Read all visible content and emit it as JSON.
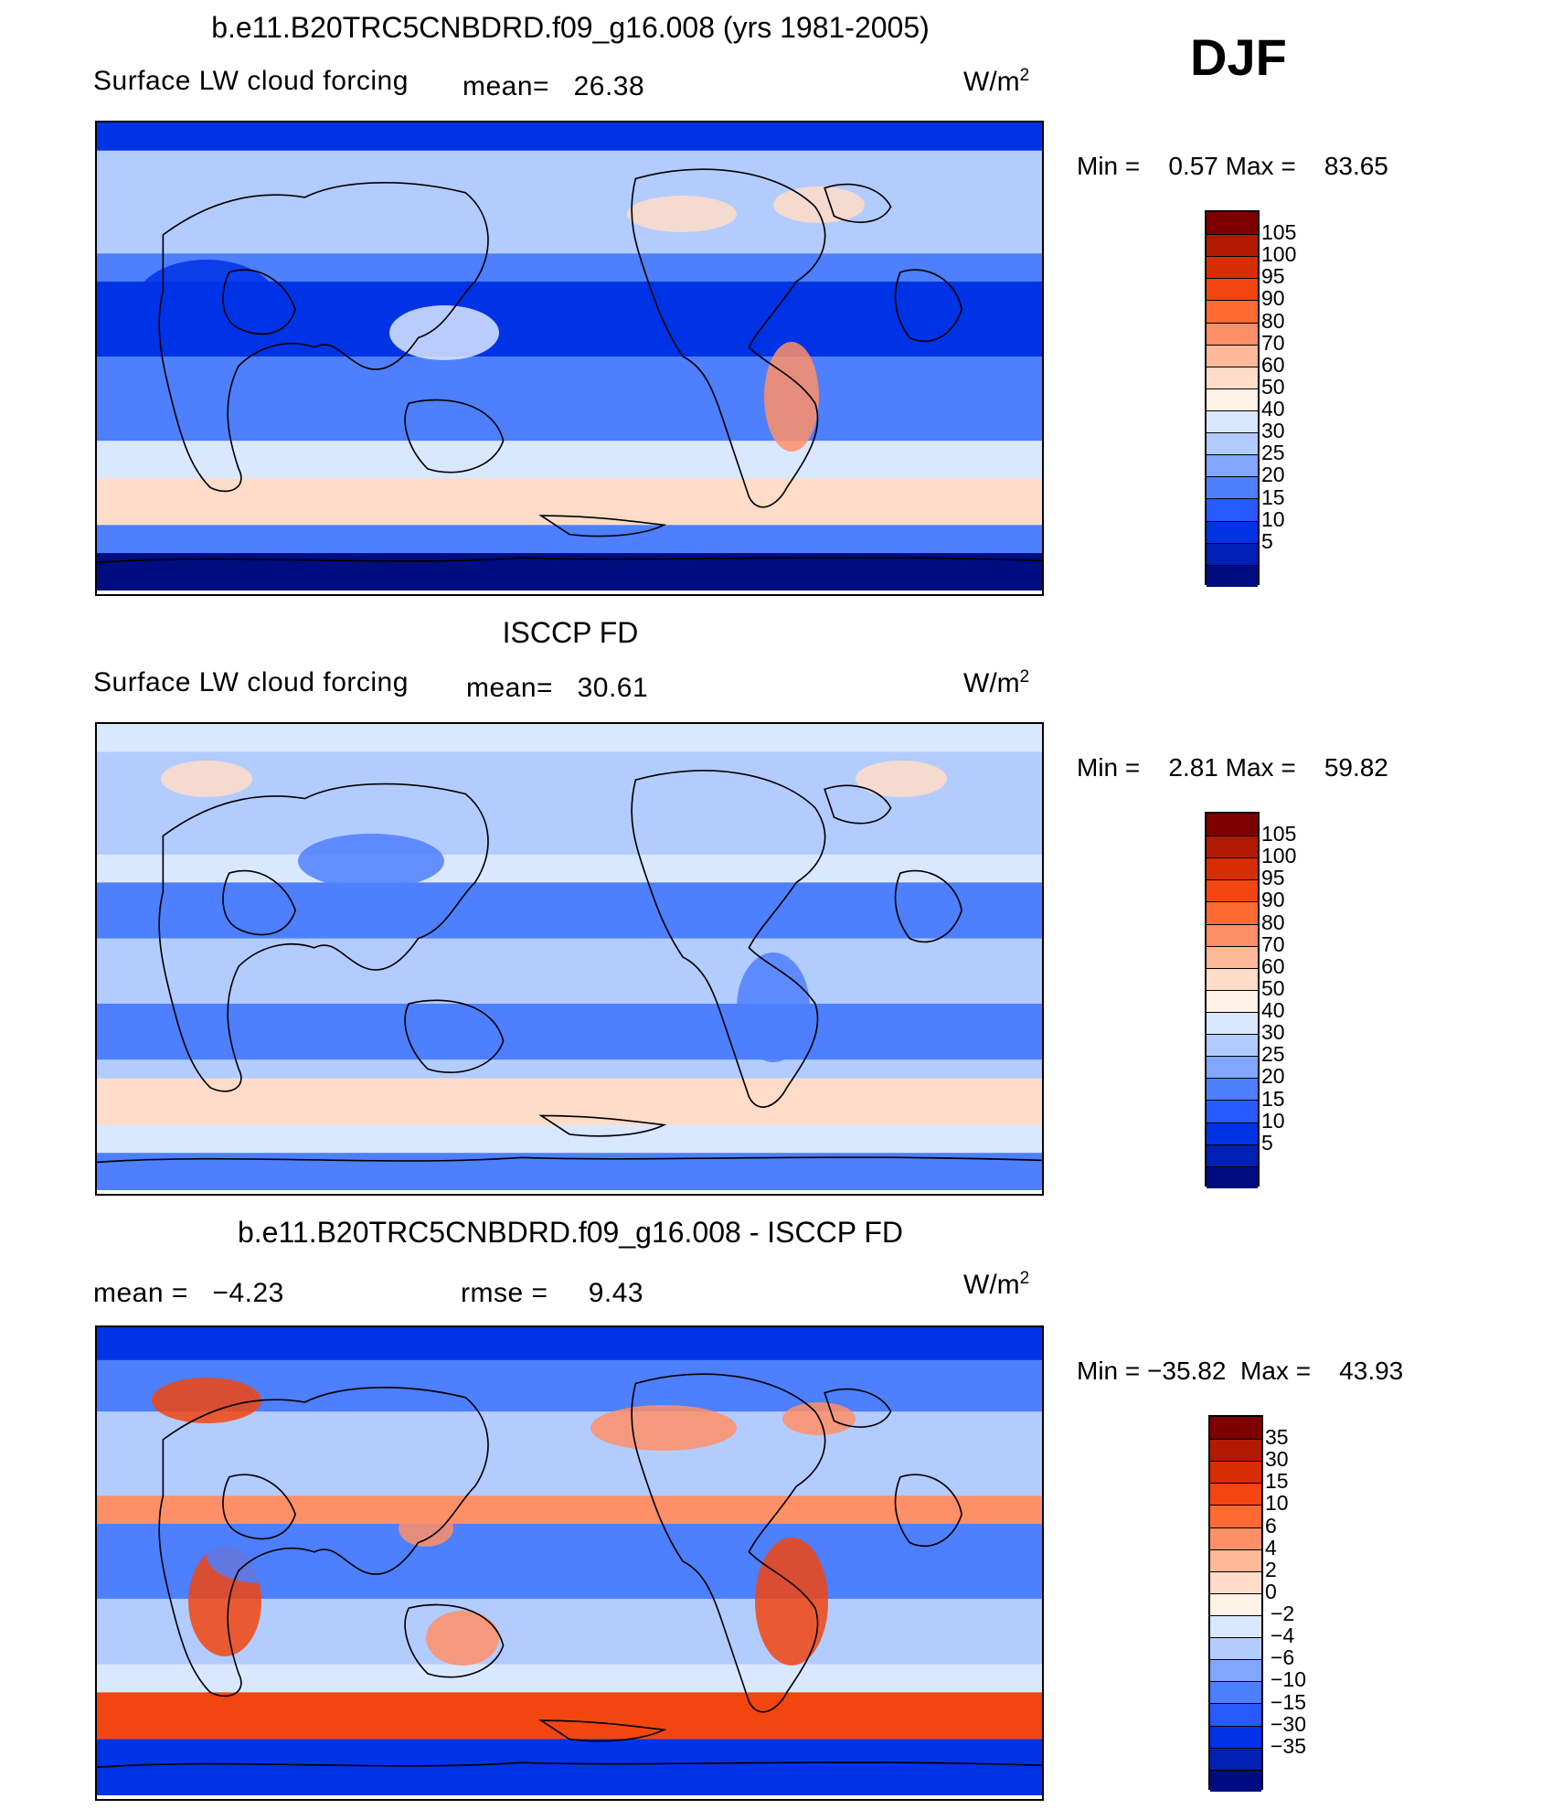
{
  "season": "DJF",
  "panels": [
    {
      "title": "b.e11.B20TRC5CNBDRD.f09_g16.008 (yrs 1981-2005)",
      "variable": "Surface LW cloud forcing",
      "mean_label": "mean=",
      "mean_value": "26.38",
      "units_base": "W/m",
      "units_exp": "2",
      "min_label": "Min =",
      "min_value": "0.57",
      "max_label": "Max =",
      "max_value": "83.65",
      "scale": "abs",
      "colorbar": {
        "labels": [
          "105",
          "100",
          "95",
          "90",
          "80",
          "70",
          "60",
          "50",
          "40",
          "30",
          "25",
          "20",
          "15",
          "10",
          "5"
        ],
        "colors": [
          "#7f0000",
          "#b21a00",
          "#d62e00",
          "#f2450f",
          "#ff6a33",
          "#ff8f66",
          "#ffb899",
          "#ffdcc7",
          "#fff2e6",
          "#d9e8ff",
          "#b3ccff",
          "#80a6ff",
          "#4d7fff",
          "#2659ff",
          "#0033e6",
          "#0020b3",
          "#000d80"
        ]
      }
    },
    {
      "title": "ISCCP FD",
      "variable": "Surface LW cloud forcing",
      "mean_label": "mean=",
      "mean_value": "30.61",
      "units_base": "W/m",
      "units_exp": "2",
      "min_label": "Min =",
      "min_value": "2.81",
      "max_label": "Max =",
      "max_value": "59.82",
      "scale": "abs",
      "colorbar": {
        "labels": [
          "105",
          "100",
          "95",
          "90",
          "80",
          "70",
          "60",
          "50",
          "40",
          "30",
          "25",
          "20",
          "15",
          "10",
          "5"
        ],
        "colors": [
          "#7f0000",
          "#b21a00",
          "#d62e00",
          "#f2450f",
          "#ff6a33",
          "#ff8f66",
          "#ffb899",
          "#ffdcc7",
          "#fff2e6",
          "#d9e8ff",
          "#b3ccff",
          "#80a6ff",
          "#4d7fff",
          "#2659ff",
          "#0033e6",
          "#0020b3",
          "#000d80"
        ]
      }
    },
    {
      "title": "b.e11.B20TRC5CNBDRD.f09_g16.008 - ISCCP FD",
      "mean_label": "mean =",
      "mean_value": "−4.23",
      "rmse_label": "rmse =",
      "rmse_value": "9.43",
      "units_base": "W/m",
      "units_exp": "2",
      "min_label": "Min =",
      "min_value": "−35.82",
      "max_label": "Max =",
      "max_value": "43.93",
      "scale": "diff",
      "colorbar": {
        "labels": [
          "35",
          "30",
          "15",
          "10",
          "6",
          "4",
          "2",
          "0",
          "−2",
          "−4",
          "−6",
          "−10",
          "−15",
          "−30",
          "−35"
        ],
        "colors": [
          "#7f0000",
          "#b21a00",
          "#d62e00",
          "#f2450f",
          "#ff6a33",
          "#ff8f66",
          "#ffb899",
          "#ffdcc7",
          "#fff2e6",
          "#d9e8ff",
          "#b3ccff",
          "#80a6ff",
          "#4d7fff",
          "#2659ff",
          "#0033e6",
          "#0020b3",
          "#000d80"
        ]
      }
    }
  ]
}
